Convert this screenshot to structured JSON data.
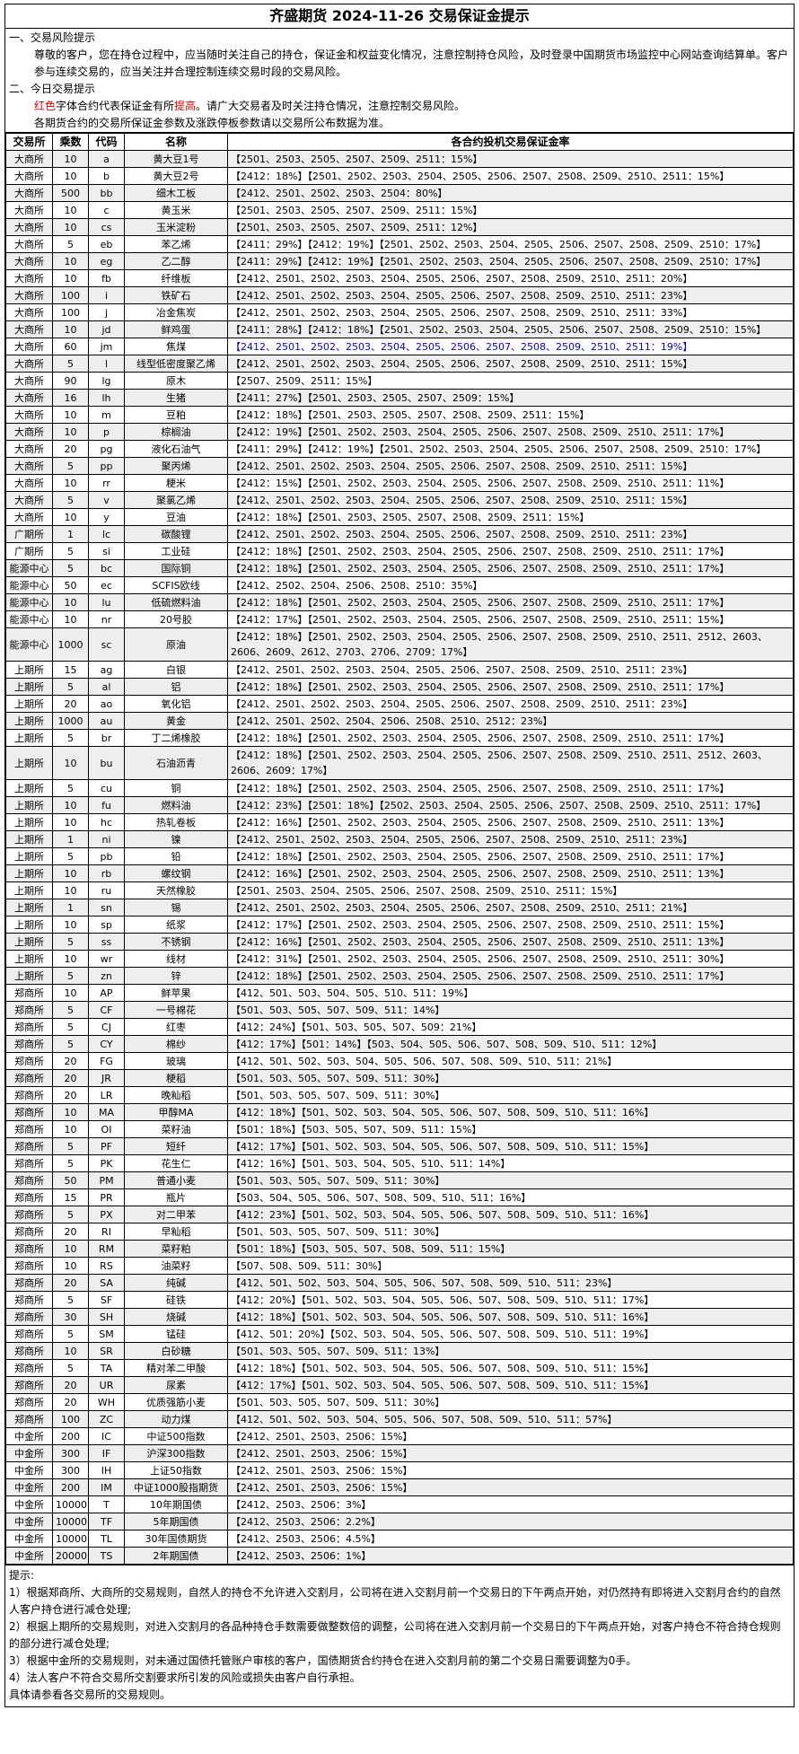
{
  "title": "齐盛期货 2024-11-26 交易保证金提示",
  "notes": {
    "h1": "一、交易风险提示",
    "p1": "尊敬的客户，您在持仓过程中，应当随时关注自己的持仓，保证金和权益变化情况，注意控制持仓风险，及时登录中国期货市场监控中心网站查询结算单。客户参与连续交易的，应当关注并合理控制连续交易时段的交易风险。",
    "h2": "二、今日交易提示",
    "p2a_red": "红色",
    "p2a_mid": "字体合约代表保证金有所",
    "p2a_red2": "提高",
    "p2a_end": "。请广大交易者及时关注持仓情况，注意控制交易风险。",
    "p3": "各期货合约的交易所保证金参数及涨跌停板参数请以交易所公布数据为准。"
  },
  "table": {
    "headers": [
      "交易所",
      "乘数",
      "代码",
      "名称",
      "各合约投机交易保证金率"
    ],
    "rows": [
      [
        "大商所",
        "10",
        "a",
        "黄大豆1号",
        "【2501、2503、2505、2507、2509、2511：15%】"
      ],
      [
        "大商所",
        "10",
        "b",
        "黄大豆2号",
        "【2412：18%】【2501、2502、2503、2504、2505、2506、2507、2508、2509、2510、2511：15%】"
      ],
      [
        "大商所",
        "500",
        "bb",
        "细木工板",
        "【2412、2501、2502、2503、2504：80%】"
      ],
      [
        "大商所",
        "10",
        "c",
        "黄玉米",
        "【2501、2503、2505、2507、2509、2511：15%】"
      ],
      [
        "大商所",
        "10",
        "cs",
        "玉米淀粉",
        "【2501、2503、2505、2507、2509、2511：12%】"
      ],
      [
        "大商所",
        "5",
        "eb",
        "苯乙烯",
        "【2411：29%】【2412：19%】【2501、2502、2503、2504、2505、2506、2507、2508、2509、2510：17%】"
      ],
      [
        "大商所",
        "10",
        "eg",
        "乙二醇",
        "【2411：29%】【2412：19%】【2501、2502、2503、2504、2505、2506、2507、2508、2509、2510：17%】"
      ],
      [
        "大商所",
        "10",
        "fb",
        "纤维板",
        "【2412、2501、2502、2503、2504、2505、2506、2507、2508、2509、2510、2511：20%】"
      ],
      [
        "大商所",
        "100",
        "i",
        "铁矿石",
        "【2412、2501、2502、2503、2504、2505、2506、2507、2508、2509、2510、2511：23%】"
      ],
      [
        "大商所",
        "100",
        "j",
        "冶金焦炭",
        "【2412、2501、2502、2503、2504、2505、2506、2507、2508、2509、2510、2511：33%】"
      ],
      [
        "大商所",
        "10",
        "jd",
        "鲜鸡蛋",
        "【2411：28%】【2412：18%】【2501、2502、2503、2504、2505、2506、2507、2508、2509、2510：15%】"
      ],
      [
        "大商所",
        "60",
        "jm",
        "焦煤",
        "【2412、2501、2502、2503、2504、2505、2506、2507、2508、2509、2510、2511：19%】"
      ],
      [
        "大商所",
        "5",
        "l",
        "线型低密度聚乙烯",
        "【2412、2501、2502、2503、2504、2505、2506、2507、2508、2509、2510、2511：15%】"
      ],
      [
        "大商所",
        "90",
        "lg",
        "原木",
        "【2507、2509、2511：15%】"
      ],
      [
        "大商所",
        "16",
        "lh",
        "生猪",
        "【2411：27%】【2501、2503、2505、2507、2509：15%】"
      ],
      [
        "大商所",
        "10",
        "m",
        "豆粕",
        "【2412：18%】【2501、2503、2505、2507、2508、2509、2511：15%】"
      ],
      [
        "大商所",
        "10",
        "p",
        "棕榈油",
        "【2412：19%】【2501、2502、2503、2504、2505、2506、2507、2508、2509、2510、2511：17%】"
      ],
      [
        "大商所",
        "20",
        "pg",
        "液化石油气",
        "【2411：29%】【2412：19%】【2501、2502、2503、2504、2505、2506、2507、2508、2509、2510：17%】"
      ],
      [
        "大商所",
        "5",
        "pp",
        "聚丙烯",
        "【2412、2501、2502、2503、2504、2505、2506、2507、2508、2509、2510、2511：15%】"
      ],
      [
        "大商所",
        "10",
        "rr",
        "粳米",
        "【2412：15%】【2501、2502、2503、2504、2505、2506、2507、2508、2509、2510、2511：11%】"
      ],
      [
        "大商所",
        "5",
        "v",
        "聚氯乙烯",
        "【2412、2501、2502、2503、2504、2505、2506、2507、2508、2509、2510、2511：15%】"
      ],
      [
        "大商所",
        "10",
        "y",
        "豆油",
        "【2412：18%】【2501、2503、2505、2507、2508、2509、2511：15%】"
      ],
      [
        "广期所",
        "1",
        "lc",
        "碳酸锂",
        "【2412、2501、2502、2503、2504、2505、2506、2507、2508、2509、2510、2511：23%】"
      ],
      [
        "广期所",
        "5",
        "si",
        "工业硅",
        "【2412：18%】【2501、2502、2503、2504、2505、2506、2507、2508、2509、2510、2511：17%】"
      ],
      [
        "能源中心",
        "5",
        "bc",
        "国际铜",
        "【2412：18%】【2501、2502、2503、2504、2505、2506、2507、2508、2509、2510、2511：17%】"
      ],
      [
        "能源中心",
        "50",
        "ec",
        "SCFIS欧线",
        "【2412、2502、2504、2506、2508、2510：35%】"
      ],
      [
        "能源中心",
        "10",
        "lu",
        "低硫燃料油",
        "【2412：18%】【2501、2502、2503、2504、2505、2506、2507、2508、2509、2510、2511：17%】"
      ],
      [
        "能源中心",
        "10",
        "nr",
        "20号胶",
        "【2412：17%】【2501、2502、2503、2504、2505、2506、2507、2508、2509、2510、2511：15%】"
      ],
      [
        "能源中心",
        "1000",
        "sc",
        "原油",
        "【2412：18%】【2501、2502、2503、2504、2505、2506、2507、2508、2509、2510、2511、2512、2603、2606、2609、2612、2703、2706、2709：17%】"
      ],
      [
        "上期所",
        "15",
        "ag",
        "白银",
        "【2412、2501、2502、2503、2504、2505、2506、2507、2508、2509、2510、2511：23%】"
      ],
      [
        "上期所",
        "5",
        "al",
        "铝",
        "【2412：18%】【2501、2502、2503、2504、2505、2506、2507、2508、2509、2510、2511：17%】"
      ],
      [
        "上期所",
        "20",
        "ao",
        "氧化铝",
        "【2412、2501、2502、2503、2504、2505、2506、2507、2508、2509、2510、2511：23%】"
      ],
      [
        "上期所",
        "1000",
        "au",
        "黄金",
        "【2412、2501、2502、2504、2506、2508、2510、2512：23%】"
      ],
      [
        "上期所",
        "5",
        "br",
        "丁二烯橡胶",
        "【2412：18%】【2501、2502、2503、2504、2505、2506、2507、2508、2509、2510、2511：17%】"
      ],
      [
        "上期所",
        "10",
        "bu",
        "石油沥青",
        "【2412：18%】【2501、2502、2503、2504、2505、2506、2507、2508、2509、2510、2511、2512、2603、2606、2609：17%】"
      ],
      [
        "上期所",
        "5",
        "cu",
        "铜",
        "【2412：18%】【2501、2502、2503、2504、2505、2506、2507、2508、2509、2510、2511：17%】"
      ],
      [
        "上期所",
        "10",
        "fu",
        "燃料油",
        "【2412：23%】【2501：18%】【2502、2503、2504、2505、2506、2507、2508、2509、2510、2511：17%】"
      ],
      [
        "上期所",
        "10",
        "hc",
        "热轧卷板",
        "【2412：16%】【2501、2502、2503、2504、2505、2506、2507、2508、2509、2510、2511：13%】"
      ],
      [
        "上期所",
        "1",
        "ni",
        "镍",
        "【2412、2501、2502、2503、2504、2505、2506、2507、2508、2509、2510、2511：23%】"
      ],
      [
        "上期所",
        "5",
        "pb",
        "铅",
        "【2412：18%】【2501、2502、2503、2504、2505、2506、2507、2508、2509、2510、2511：17%】"
      ],
      [
        "上期所",
        "10",
        "rb",
        "螺纹钢",
        "【2412：16%】【2501、2502、2503、2504、2505、2506、2507、2508、2509、2510、2511：13%】"
      ],
      [
        "上期所",
        "10",
        "ru",
        "天然橡胶",
        "【2501、2503、2504、2505、2506、2507、2508、2509、2510、2511：15%】"
      ],
      [
        "上期所",
        "1",
        "sn",
        "锡",
        "【2412、2501、2502、2503、2504、2505、2506、2507、2508、2509、2510、2511：21%】"
      ],
      [
        "上期所",
        "10",
        "sp",
        "纸浆",
        "【2412：17%】【2501、2502、2503、2504、2505、2506、2507、2508、2509、2510、2511：15%】"
      ],
      [
        "上期所",
        "5",
        "ss",
        "不锈钢",
        "【2412：16%】【2501、2502、2503、2504、2505、2506、2507、2508、2509、2510、2511：13%】"
      ],
      [
        "上期所",
        "10",
        "wr",
        "线材",
        "【2412：31%】【2501、2502、2503、2504、2505、2506、2507、2508、2509、2510、2511：30%】"
      ],
      [
        "上期所",
        "5",
        "zn",
        "锌",
        "【2412：18%】【2501、2502、2503、2504、2505、2506、2507、2508、2509、2510、2511：17%】"
      ],
      [
        "郑商所",
        "10",
        "AP",
        "鲜苹果",
        "【412、501、503、504、505、510、511：19%】"
      ],
      [
        "郑商所",
        "5",
        "CF",
        "一号棉花",
        "【501、503、505、507、509、511：14%】"
      ],
      [
        "郑商所",
        "5",
        "CJ",
        "红枣",
        "【412：24%】【501、503、505、507、509：21%】"
      ],
      [
        "郑商所",
        "5",
        "CY",
        "棉纱",
        "【412：17%】【501：14%】【503、504、505、506、507、508、509、510、511：12%】"
      ],
      [
        "郑商所",
        "20",
        "FG",
        "玻璃",
        "【412、501、502、503、504、505、506、507、508、509、510、511：21%】"
      ],
      [
        "郑商所",
        "20",
        "JR",
        "粳稻",
        "【501、503、505、507、509、511：30%】"
      ],
      [
        "郑商所",
        "20",
        "LR",
        "晚籼稻",
        "【501、503、505、507、509、511：30%】"
      ],
      [
        "郑商所",
        "10",
        "MA",
        "甲醇MA",
        "【412：18%】【501、502、503、504、505、506、507、508、509、510、511：16%】"
      ],
      [
        "郑商所",
        "10",
        "OI",
        "菜籽油",
        "【501：18%】【503、505、507、509、511：15%】"
      ],
      [
        "郑商所",
        "5",
        "PF",
        "短纤",
        "【412：17%】【501、502、503、504、505、506、507、508、509、510、511：15%】"
      ],
      [
        "郑商所",
        "5",
        "PK",
        "花生仁",
        "【412：16%】【501、503、504、505、510、511：14%】"
      ],
      [
        "郑商所",
        "50",
        "PM",
        "普通小麦",
        "【501、503、505、507、509、511：30%】"
      ],
      [
        "郑商所",
        "15",
        "PR",
        "瓶片",
        "【503、504、505、506、507、508、509、510、511：16%】"
      ],
      [
        "郑商所",
        "5",
        "PX",
        "对二甲苯",
        "【412：23%】【501、502、503、504、505、506、507、508、509、510、511：16%】"
      ],
      [
        "郑商所",
        "20",
        "RI",
        "早籼稻",
        "【501、503、505、507、509、511：30%】"
      ],
      [
        "郑商所",
        "10",
        "RM",
        "菜籽粕",
        "【501：18%】【503、505、507、508、509、511：15%】"
      ],
      [
        "郑商所",
        "10",
        "RS",
        "油菜籽",
        "【507、508、509、511：30%】"
      ],
      [
        "郑商所",
        "20",
        "SA",
        "纯碱",
        "【412、501、502、503、504、505、506、507、508、509、510、511：23%】"
      ],
      [
        "郑商所",
        "5",
        "SF",
        "硅铁",
        "【412：20%】【501、502、503、504、505、506、507、508、509、510、511：17%】"
      ],
      [
        "郑商所",
        "30",
        "SH",
        "烧碱",
        "【412：18%】【501、502、503、504、505、506、507、508、509、510、511：16%】"
      ],
      [
        "郑商所",
        "5",
        "SM",
        "锰硅",
        "【412、501：20%】【502、503、504、505、506、507、508、509、510、511：19%】"
      ],
      [
        "郑商所",
        "10",
        "SR",
        "白砂糖",
        "【501、503、505、507、509、511：13%】"
      ],
      [
        "郑商所",
        "5",
        "TA",
        "精对苯二甲酸",
        "【412：18%】【501、502、503、504、505、506、507、508、509、510、511：15%】"
      ],
      [
        "郑商所",
        "20",
        "UR",
        "尿素",
        "【412：17%】【501、502、503、504、505、506、507、508、509、510、511：15%】"
      ],
      [
        "郑商所",
        "20",
        "WH",
        "优质强筋小麦",
        "【501、503、505、507、509、511：30%】"
      ],
      [
        "郑商所",
        "100",
        "ZC",
        "动力煤",
        "【412、501、502、503、504、505、506、507、508、509、510、511：57%】"
      ],
      [
        "中金所",
        "200",
        "IC",
        "中证500指数",
        "【2412、2501、2503、2506：15%】"
      ],
      [
        "中金所",
        "300",
        "IF",
        "沪深300指数",
        "【2412、2501、2503、2506：15%】"
      ],
      [
        "中金所",
        "300",
        "IH",
        "上证50指数",
        "【2412、2501、2503、2506：15%】"
      ],
      [
        "中金所",
        "200",
        "IM",
        "中证1000股指期货",
        "【2412、2501、2503、2506：15%】"
      ],
      [
        "中金所",
        "10000",
        "T",
        "10年期国债",
        "【2412、2503、2506：3%】"
      ],
      [
        "中金所",
        "10000",
        "TF",
        "5年期国债",
        "【2412、2503、2506：2.2%】"
      ],
      [
        "中金所",
        "10000",
        "TL",
        "30年国债期货",
        "【2412、2503、2506：4.5%】"
      ],
      [
        "中金所",
        "20000",
        "TS",
        "2年期国债",
        "【2412、2503、2506：1%】"
      ]
    ]
  },
  "footer": {
    "title": "提示:",
    "items": [
      "1）根据郑商所、大商所的交易规则，自然人的持仓不允许进入交割月，公司将在进入交割月前一个交易日的下午两点开始，对仍然持有即将进入交割月合约的自然人客户持仓进行减仓处理;",
      "2）根据上期所的交易规则，对进入交割月的各品种持仓手数需要做整数倍的调整，公司将在进入交割月前一个交易日的下午两点开始，对客户持仓不符合持仓规则的部分进行减仓处理;",
      "3）根据中金所的交易规则，对未通过国债托管账户审核的客户，国债期货合约持仓在进入交割月前的第二个交易日需要调整为0手。",
      "4）法人客户不符合交易所交割要求所引发的风险或损失由客户自行承担。",
      "具体请参看各交易所的交易规则。"
    ]
  }
}
